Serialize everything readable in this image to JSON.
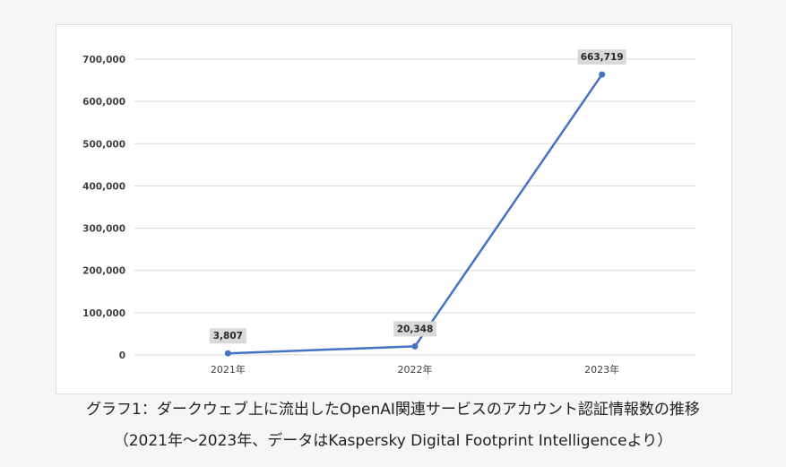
{
  "chart_data": {
    "type": "line",
    "categories": [
      "2021年",
      "2022年",
      "2023年"
    ],
    "values": [
      3807,
      20348,
      663719
    ],
    "data_labels": [
      "3,807",
      "20,348",
      "663,719"
    ],
    "ylim": [
      0,
      700000
    ],
    "y_ticks": [
      0,
      100000,
      200000,
      300000,
      400000,
      500000,
      600000,
      700000
    ],
    "y_tick_labels": [
      "0",
      "100,000",
      "200,000",
      "300,000",
      "400,000",
      "500,000",
      "600,000",
      "700,000"
    ],
    "grid": true,
    "legend": "none",
    "line_color": "#4472c4",
    "title": "",
    "xlabel": "",
    "ylabel": ""
  },
  "caption": {
    "line1": "グラフ1：ダークウェブ上に流出したOpenAI関連サービスのアカウント認証情報数の推移",
    "line2": "（2021年～2023年、データはKaspersky Digital Footprint Intelligenceより）"
  },
  "colors": {
    "line": "#4472c4",
    "gridline": "#d9d9d9",
    "label_bg": "#d9d9d9",
    "page_bg": "#f6f6f6"
  }
}
